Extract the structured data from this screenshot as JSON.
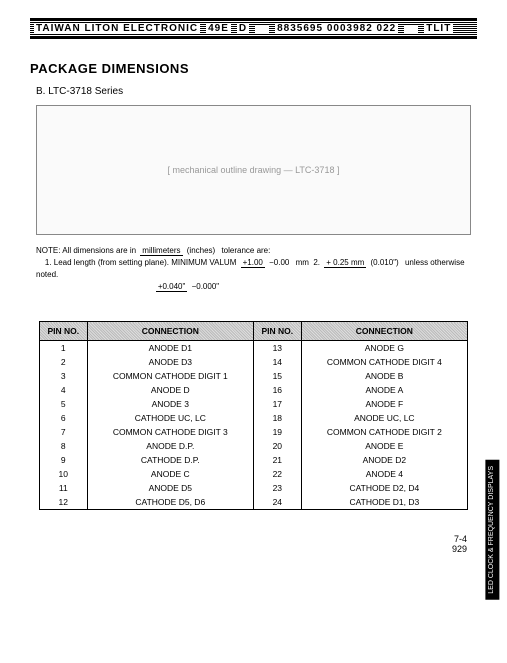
{
  "header": {
    "company": "TAIWAN LITON ELECTRONIC",
    "code1": "49E",
    "code2": "D",
    "code3": "8835695 0003982 022",
    "endtag": "TLIT"
  },
  "title": "PACKAGE DIMENSIONS",
  "series_label": "B.  LTC-3718 Series",
  "diagram_placeholder": "[ mechanical outline drawing — LTC-3718 ]",
  "notes": {
    "intro": "NOTE:  All dimensions are in",
    "unit_top": "millimeters",
    "unit_bot": "(inches)",
    "tol": "tolerance are:",
    "line1a": "1.  Lead length (from setting plane).  MINIMUM VALUM",
    "f1_top": "+1.00",
    "f1_bot": "−0.00",
    "mm": "mm",
    "f1i_top": "+0.040\"",
    "f1i_bot": "−0.000\"",
    "sep2": "2.",
    "f2_top": "+ 0.25 mm",
    "f2_bot": "(0.010\")",
    "tail": "unless otherwise noted."
  },
  "table": {
    "headers": [
      "PIN NO.",
      "CONNECTION",
      "PIN NO.",
      "CONNECTION"
    ],
    "rows": [
      [
        "1",
        "ANODE D1",
        "13",
        "ANODE G"
      ],
      [
        "2",
        "ANODE D3",
        "14",
        "COMMON CATHODE DIGIT 4"
      ],
      [
        "3",
        "COMMON CATHODE DIGIT 1",
        "15",
        "ANODE B"
      ],
      [
        "4",
        "ANODE D",
        "16",
        "ANODE A"
      ],
      [
        "5",
        "ANODE 3",
        "17",
        "ANODE F"
      ],
      [
        "6",
        "CATHODE UC, LC",
        "18",
        "ANODE UC, LC"
      ],
      [
        "7",
        "COMMON CATHODE DIGIT 3",
        "19",
        "COMMON CATHODE DIGIT 2"
      ],
      [
        "8",
        "ANODE D.P.",
        "20",
        "ANODE E"
      ],
      [
        "9",
        "CATHODE D.P.",
        "21",
        "ANODE D2"
      ],
      [
        "10",
        "ANODE C",
        "22",
        "ANODE 4"
      ],
      [
        "11",
        "ANODE D5",
        "23",
        "CATHODE D2, D4"
      ],
      [
        "12",
        "CATHODE D5, D6",
        "24",
        "CATHODE D1, D3"
      ]
    ]
  },
  "side_tab": "LED CLOCK &\nFREQUENCY DISPLAYS",
  "footer": {
    "sec": "7-4",
    "page": "929"
  }
}
